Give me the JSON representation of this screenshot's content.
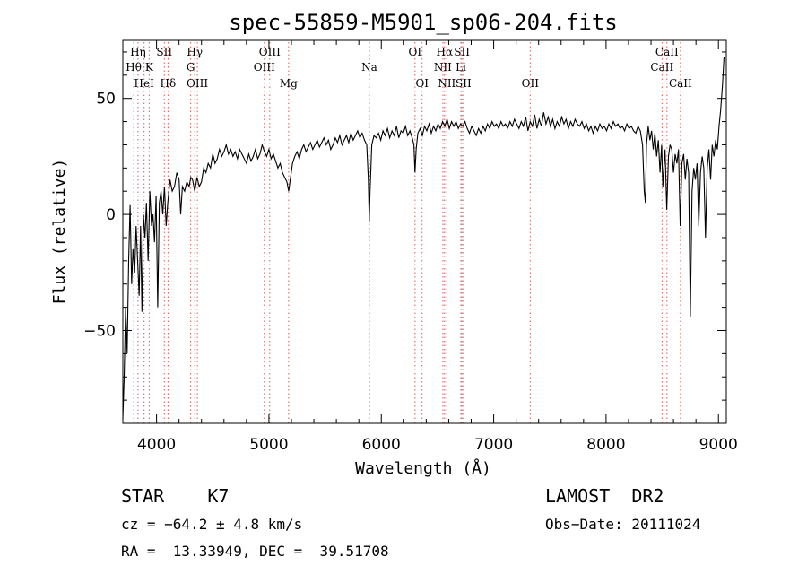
{
  "chart_data": {
    "type": "line",
    "title": "spec-55859-M5901_sp06-204.fits",
    "xlabel": "Wavelength (Å)",
    "ylabel": "Flux (relative)",
    "xlim": [
      3700,
      9070
    ],
    "ylim": [
      -90,
      75
    ],
    "x_ticks": [
      4000,
      5000,
      6000,
      7000,
      8000,
      9000
    ],
    "y_ticks": [
      -50,
      0,
      50
    ],
    "grid": false,
    "series": [
      {
        "points": [
          [
            3700,
            -88
          ],
          [
            3712,
            -70
          ],
          [
            3725,
            -40
          ],
          [
            3738,
            -60
          ],
          [
            3752,
            -20
          ],
          [
            3765,
            4
          ],
          [
            3778,
            -30
          ],
          [
            3790,
            -15
          ],
          [
            3805,
            -25
          ],
          [
            3818,
            -5
          ],
          [
            3832,
            -20
          ],
          [
            3845,
            -35
          ],
          [
            3858,
            -5
          ],
          [
            3870,
            -42
          ],
          [
            3883,
            0
          ],
          [
            3897,
            -10
          ],
          [
            3910,
            5
          ],
          [
            3925,
            -20
          ],
          [
            3940,
            10
          ],
          [
            3955,
            -5
          ],
          [
            3968,
            0
          ],
          [
            3982,
            -12
          ],
          [
            3996,
            8
          ],
          [
            4010,
            -40
          ],
          [
            4025,
            5
          ],
          [
            4040,
            10
          ],
          [
            4055,
            0
          ],
          [
            4070,
            12
          ],
          [
            4085,
            -5
          ],
          [
            4100,
            5
          ],
          [
            4120,
            15
          ],
          [
            4140,
            10
          ],
          [
            4160,
            12
          ],
          [
            4180,
            18
          ],
          [
            4200,
            15
          ],
          [
            4215,
            0
          ],
          [
            4230,
            12
          ],
          [
            4250,
            10
          ],
          [
            4270,
            14
          ],
          [
            4290,
            12
          ],
          [
            4305,
            16
          ],
          [
            4320,
            15
          ],
          [
            4340,
            10
          ],
          [
            4360,
            16
          ],
          [
            4380,
            12
          ],
          [
            4400,
            14
          ],
          [
            4420,
            20
          ],
          [
            4440,
            18
          ],
          [
            4460,
            22
          ],
          [
            4480,
            20
          ],
          [
            4500,
            26
          ],
          [
            4520,
            22
          ],
          [
            4540,
            24
          ],
          [
            4560,
            28
          ],
          [
            4580,
            25
          ],
          [
            4600,
            27
          ],
          [
            4620,
            30
          ],
          [
            4640,
            26
          ],
          [
            4660,
            28
          ],
          [
            4680,
            25
          ],
          [
            4700,
            27
          ],
          [
            4720,
            24
          ],
          [
            4740,
            28
          ],
          [
            4760,
            26
          ],
          [
            4780,
            24
          ],
          [
            4800,
            22
          ],
          [
            4820,
            26
          ],
          [
            4840,
            23
          ],
          [
            4860,
            25
          ],
          [
            4880,
            28
          ],
          [
            4900,
            24
          ],
          [
            4920,
            26
          ],
          [
            4940,
            30
          ],
          [
            4960,
            27
          ],
          [
            4980,
            25
          ],
          [
            5000,
            28
          ],
          [
            5020,
            24
          ],
          [
            5040,
            26
          ],
          [
            5060,
            23
          ],
          [
            5080,
            20
          ],
          [
            5100,
            22
          ],
          [
            5120,
            18
          ],
          [
            5140,
            16
          ],
          [
            5160,
            14
          ],
          [
            5175,
            10
          ],
          [
            5190,
            15
          ],
          [
            5210,
            22
          ],
          [
            5230,
            25
          ],
          [
            5250,
            27
          ],
          [
            5270,
            24
          ],
          [
            5290,
            28
          ],
          [
            5310,
            30
          ],
          [
            5330,
            27
          ],
          [
            5350,
            29
          ],
          [
            5370,
            31
          ],
          [
            5390,
            28
          ],
          [
            5410,
            30
          ],
          [
            5430,
            32
          ],
          [
            5450,
            29
          ],
          [
            5470,
            31
          ],
          [
            5490,
            33
          ],
          [
            5510,
            30
          ],
          [
            5530,
            32
          ],
          [
            5550,
            28
          ],
          [
            5570,
            30
          ],
          [
            5590,
            33
          ],
          [
            5610,
            31
          ],
          [
            5630,
            34
          ],
          [
            5650,
            30
          ],
          [
            5670,
            32
          ],
          [
            5690,
            34
          ],
          [
            5710,
            31
          ],
          [
            5730,
            35
          ],
          [
            5750,
            32
          ],
          [
            5770,
            34
          ],
          [
            5790,
            36
          ],
          [
            5810,
            33
          ],
          [
            5830,
            35
          ],
          [
            5850,
            32
          ],
          [
            5870,
            30
          ],
          [
            5885,
            15
          ],
          [
            5893,
            -3
          ],
          [
            5900,
            10
          ],
          [
            5915,
            30
          ],
          [
            5935,
            34
          ],
          [
            5955,
            33
          ],
          [
            5975,
            35
          ],
          [
            5995,
            32
          ],
          [
            6015,
            36
          ],
          [
            6035,
            34
          ],
          [
            6055,
            37
          ],
          [
            6075,
            33
          ],
          [
            6095,
            36
          ],
          [
            6115,
            34
          ],
          [
            6135,
            38
          ],
          [
            6155,
            33
          ],
          [
            6175,
            36
          ],
          [
            6195,
            35
          ],
          [
            6215,
            38
          ],
          [
            6235,
            34
          ],
          [
            6255,
            36
          ],
          [
            6275,
            33
          ],
          [
            6290,
            30
          ],
          [
            6300,
            18
          ],
          [
            6310,
            28
          ],
          [
            6325,
            35
          ],
          [
            6345,
            37
          ],
          [
            6365,
            34
          ],
          [
            6385,
            38
          ],
          [
            6405,
            36
          ],
          [
            6425,
            39
          ],
          [
            6445,
            35
          ],
          [
            6465,
            38
          ],
          [
            6485,
            36
          ],
          [
            6505,
            39
          ],
          [
            6525,
            37
          ],
          [
            6545,
            40
          ],
          [
            6565,
            38
          ],
          [
            6585,
            41
          ],
          [
            6605,
            37
          ],
          [
            6625,
            40
          ],
          [
            6645,
            38
          ],
          [
            6665,
            40
          ],
          [
            6685,
            37
          ],
          [
            6705,
            39
          ],
          [
            6725,
            38
          ],
          [
            6745,
            40
          ],
          [
            6765,
            37
          ],
          [
            6785,
            35
          ],
          [
            6805,
            38
          ],
          [
            6825,
            36
          ],
          [
            6845,
            34
          ],
          [
            6865,
            37
          ],
          [
            6885,
            35
          ],
          [
            6905,
            38
          ],
          [
            6925,
            36
          ],
          [
            6945,
            39
          ],
          [
            6965,
            37
          ],
          [
            6985,
            40
          ],
          [
            7005,
            38
          ],
          [
            7025,
            39
          ],
          [
            7045,
            37
          ],
          [
            7065,
            40
          ],
          [
            7085,
            38
          ],
          [
            7105,
            39
          ],
          [
            7125,
            37
          ],
          [
            7145,
            40
          ],
          [
            7165,
            38
          ],
          [
            7185,
            41
          ],
          [
            7205,
            39
          ],
          [
            7225,
            37
          ],
          [
            7245,
            40
          ],
          [
            7265,
            38
          ],
          [
            7285,
            42
          ],
          [
            7305,
            36
          ],
          [
            7325,
            40
          ],
          [
            7345,
            38
          ],
          [
            7365,
            43
          ],
          [
            7385,
            37
          ],
          [
            7405,
            41
          ],
          [
            7425,
            38
          ],
          [
            7445,
            44
          ],
          [
            7465,
            39
          ],
          [
            7485,
            42
          ],
          [
            7505,
            38
          ],
          [
            7525,
            41
          ],
          [
            7545,
            37
          ],
          [
            7565,
            40
          ],
          [
            7585,
            38
          ],
          [
            7605,
            42
          ],
          [
            7625,
            39
          ],
          [
            7645,
            41
          ],
          [
            7665,
            37
          ],
          [
            7685,
            40
          ],
          [
            7705,
            38
          ],
          [
            7725,
            41
          ],
          [
            7745,
            39
          ],
          [
            7765,
            38
          ],
          [
            7785,
            40
          ],
          [
            7805,
            37
          ],
          [
            7825,
            39
          ],
          [
            7845,
            36
          ],
          [
            7865,
            38
          ],
          [
            7885,
            35
          ],
          [
            7905,
            38
          ],
          [
            7925,
            36
          ],
          [
            7945,
            39
          ],
          [
            7965,
            37
          ],
          [
            7985,
            38
          ],
          [
            8005,
            36
          ],
          [
            8025,
            39
          ],
          [
            8045,
            37
          ],
          [
            8065,
            40
          ],
          [
            8085,
            38
          ],
          [
            8105,
            39
          ],
          [
            8125,
            37
          ],
          [
            8145,
            38
          ],
          [
            8165,
            36
          ],
          [
            8185,
            39
          ],
          [
            8205,
            37
          ],
          [
            8225,
            38
          ],
          [
            8245,
            36
          ],
          [
            8265,
            35
          ],
          [
            8285,
            38
          ],
          [
            8305,
            36
          ],
          [
            8325,
            30
          ],
          [
            8340,
            10
          ],
          [
            8350,
            5
          ],
          [
            8360,
            30
          ],
          [
            8375,
            38
          ],
          [
            8390,
            32
          ],
          [
            8405,
            36
          ],
          [
            8420,
            28
          ],
          [
            8435,
            35
          ],
          [
            8450,
            25
          ],
          [
            8465,
            32
          ],
          [
            8480,
            18
          ],
          [
            8495,
            30
          ],
          [
            8505,
            12
          ],
          [
            8515,
            20
          ],
          [
            8525,
            28
          ],
          [
            8540,
            2
          ],
          [
            8555,
            25
          ],
          [
            8570,
            30
          ],
          [
            8585,
            28
          ],
          [
            8600,
            18
          ],
          [
            8615,
            26
          ],
          [
            8630,
            22
          ],
          [
            8645,
            28
          ],
          [
            8660,
            -5
          ],
          [
            8675,
            22
          ],
          [
            8690,
            26
          ],
          [
            8705,
            15
          ],
          [
            8720,
            24
          ],
          [
            8735,
            18
          ],
          [
            8750,
            -44
          ],
          [
            8765,
            10
          ],
          [
            8780,
            20
          ],
          [
            8795,
            15
          ],
          [
            8810,
            22
          ],
          [
            8825,
            -5
          ],
          [
            8840,
            18
          ],
          [
            8855,
            25
          ],
          [
            8870,
            20
          ],
          [
            8885,
            -10
          ],
          [
            8900,
            20
          ],
          [
            8915,
            28
          ],
          [
            8930,
            15
          ],
          [
            8945,
            30
          ],
          [
            8960,
            25
          ],
          [
            8975,
            32
          ],
          [
            8990,
            28
          ],
          [
            9005,
            38
          ],
          [
            9020,
            45
          ],
          [
            9035,
            55
          ],
          [
            9050,
            68
          ]
        ]
      }
    ],
    "lines": [
      {
        "label": "Hη",
        "x": 3835,
        "row": 0
      },
      {
        "label": "Hθ",
        "x": 3797,
        "row": 1
      },
      {
        "label": "K",
        "x": 3934,
        "row": 1
      },
      {
        "label": "HeI",
        "x": 3889,
        "row": 2
      },
      {
        "label": "SII",
        "x": 4069,
        "row": 0
      },
      {
        "label": "Hδ",
        "x": 4102,
        "row": 2
      },
      {
        "label": "Hγ",
        "x": 4340,
        "row": 0
      },
      {
        "label": "G",
        "x": 4304,
        "row": 1
      },
      {
        "label": "OIII",
        "x": 4363,
        "row": 2
      },
      {
        "label": "OIII",
        "x": 5007,
        "row": 0
      },
      {
        "label": "OIII",
        "x": 4959,
        "row": 1
      },
      {
        "label": "Mg",
        "x": 5175,
        "row": 2
      },
      {
        "label": "Na",
        "x": 5894,
        "row": 1
      },
      {
        "label": "OI",
        "x": 6300,
        "row": 0
      },
      {
        "label": "OI",
        "x": 6363,
        "row": 2
      },
      {
        "label": "Hα",
        "x": 6563,
        "row": 0
      },
      {
        "label": "NII",
        "x": 6548,
        "row": 1
      },
      {
        "label": "NII",
        "x": 6583,
        "row": 2
      },
      {
        "label": "SII",
        "x": 6717,
        "row": 0
      },
      {
        "label": "Li",
        "x": 6708,
        "row": 1
      },
      {
        "label": "SII",
        "x": 6731,
        "row": 2
      },
      {
        "label": "OII",
        "x": 7325,
        "row": 2
      },
      {
        "label": "CaII",
        "x": 8542,
        "row": 0
      },
      {
        "label": "CaII",
        "x": 8498,
        "row": 1
      },
      {
        "label": "CaII",
        "x": 8662,
        "row": 2
      }
    ]
  },
  "info": {
    "class": "STAR    K7",
    "survey": "LAMOST  DR2",
    "cz": "cz = −64.2 ± 4.8 km/s",
    "obsdate": "Obs−Date: 20111024",
    "coords": "RA =  13.33949, DEC =  39.51708"
  }
}
